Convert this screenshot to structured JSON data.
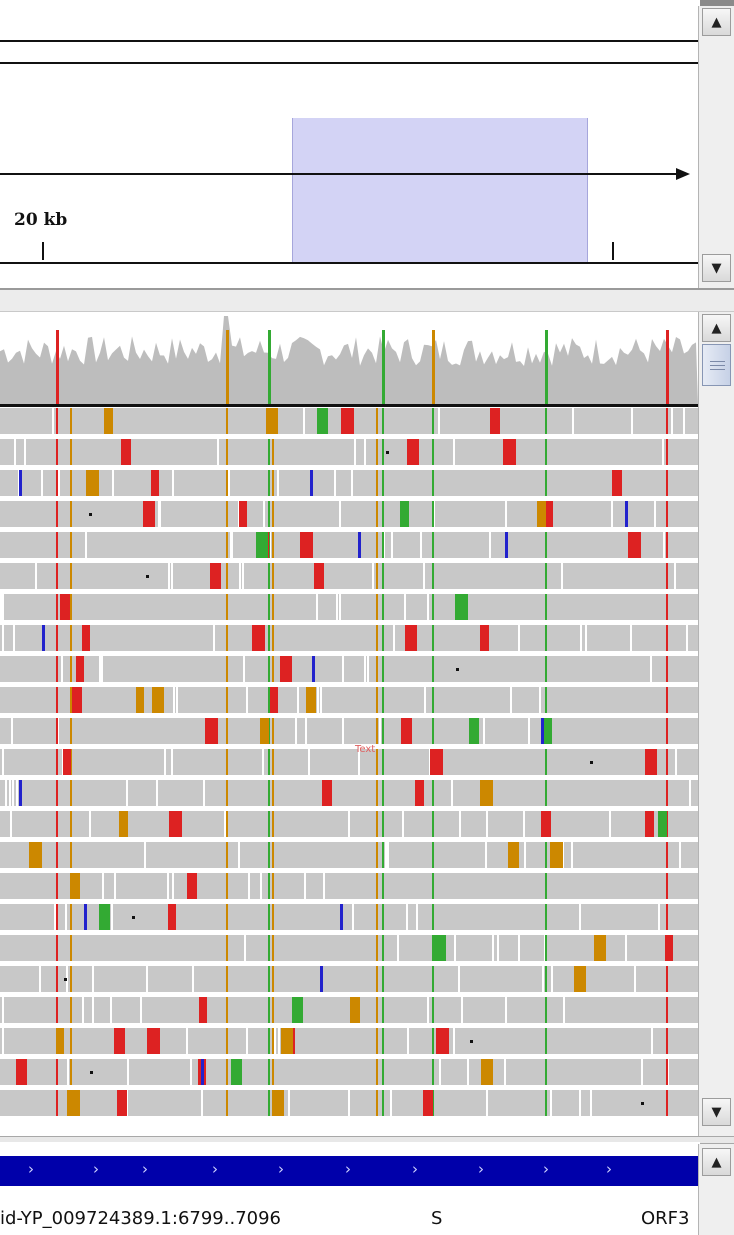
{
  "ruler": {
    "scale_label": "20 kb"
  },
  "alignment": {
    "sort_hint": "Text"
  },
  "feature_track": {
    "feature_name": "id-YP_009724389.1:6799..7096",
    "strand": "S",
    "orf_label": "ORF3",
    "chevron": "›"
  },
  "scrollbar_icons": {
    "up": "▲",
    "down": "▼"
  },
  "colors": {
    "region_highlight": "#d3d3f5",
    "coverage": "#bdbdbd",
    "read": "#c8c8c8",
    "gene": "#0000aa",
    "mismatch_A": "#33aa33",
    "mismatch_C": "#2222cc",
    "mismatch_G": "#cc8800",
    "mismatch_T": "#dd2222"
  }
}
